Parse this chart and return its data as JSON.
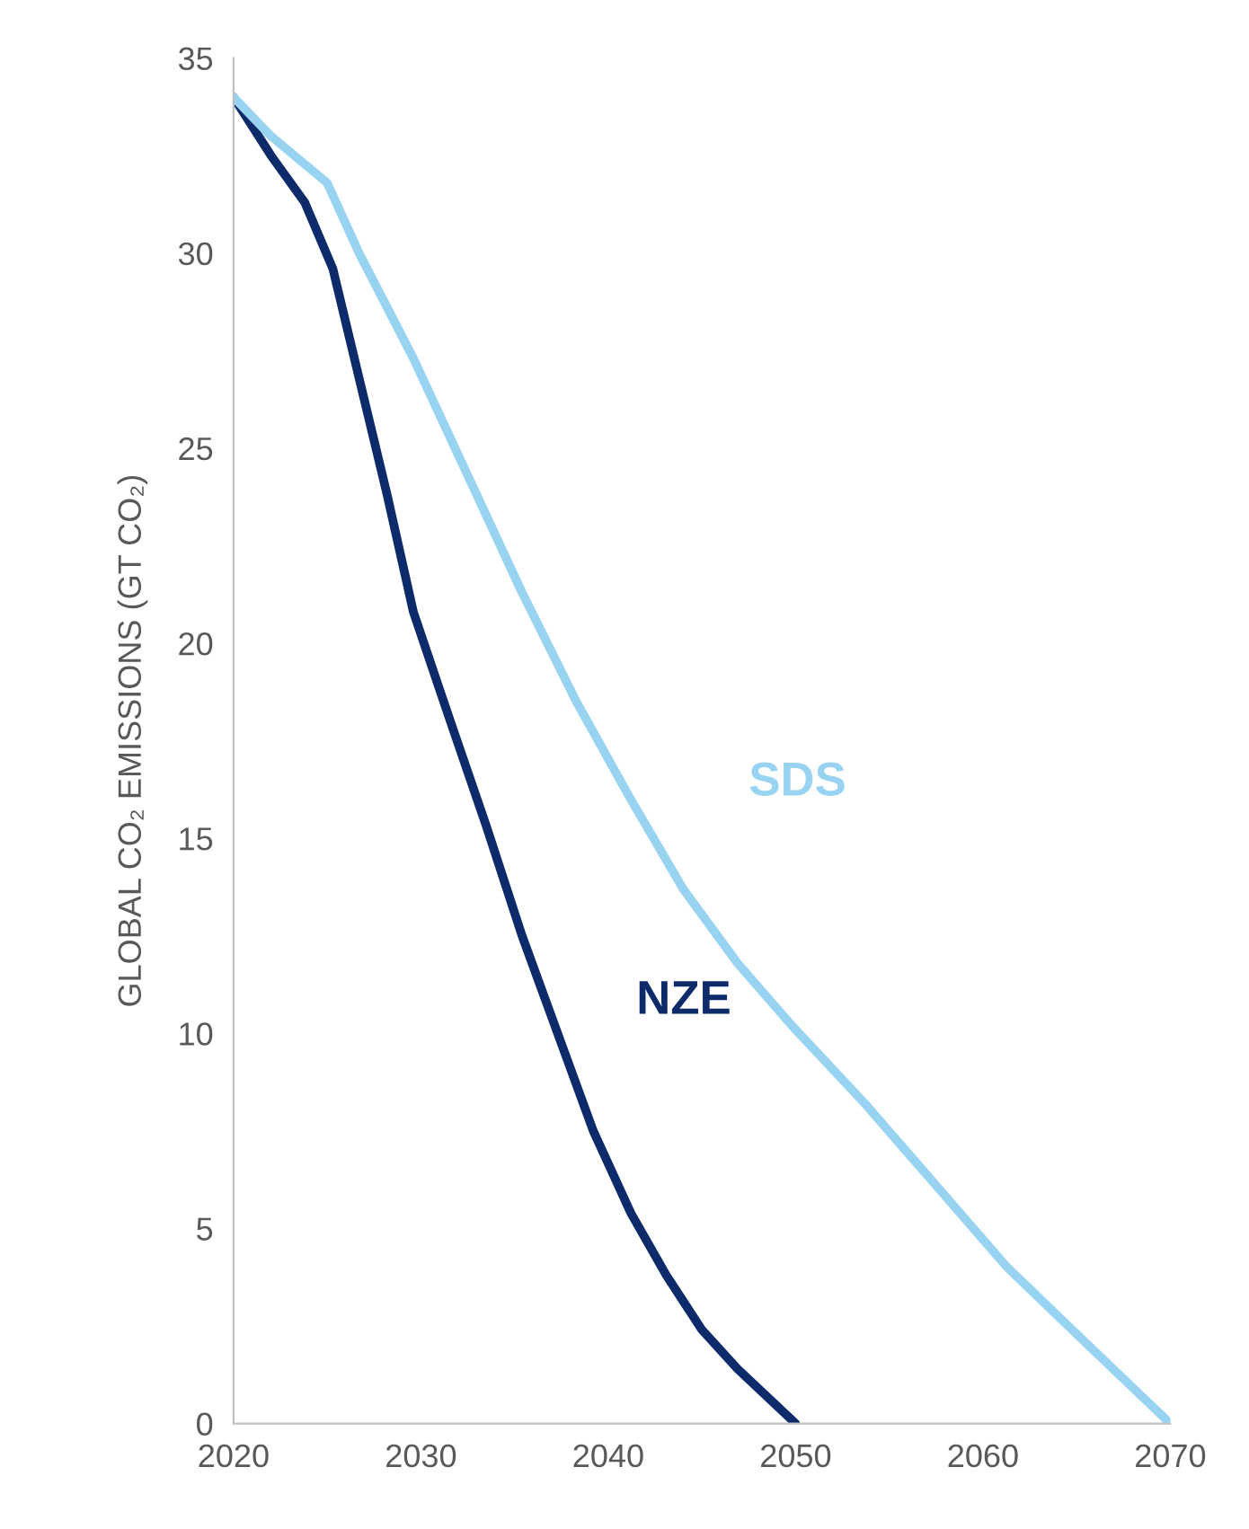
{
  "chart_data": {
    "type": "line",
    "ylabel": "GLOBAL CO₂ EMISSIONS (GT CO₂)",
    "xlim": [
      2020,
      2070
    ],
    "xticks": [
      2020,
      2030,
      2040,
      2050,
      2060,
      2070
    ],
    "ylim": [
      0,
      35
    ],
    "yticks": [
      0,
      5,
      10,
      15,
      20,
      25,
      30,
      35
    ],
    "grid": false,
    "legend": false,
    "marker": "none",
    "line_style": "solid",
    "series": [
      {
        "name": "NZE",
        "color": "#0d2b6b",
        "x": [
          2020,
          2022,
          2023.8,
          2025.3,
          2026.7,
          2028.2,
          2029.6,
          2031.5,
          2033.5,
          2035.4,
          2037.3,
          2039.2,
          2041.2,
          2043.1,
          2045,
          2046.9,
          2050
        ],
        "values": [
          34,
          32.5,
          31.3,
          29.6,
          26.8,
          23.8,
          20.8,
          18.1,
          15.3,
          12.5,
          10,
          7.5,
          5.4,
          3.8,
          2.4,
          1.4,
          0
        ]
      },
      {
        "name": "SDS",
        "color": "#99d3f2",
        "x": [
          2020,
          2022,
          2025,
          2026.7,
          2029.6,
          2032.5,
          2035.4,
          2038.3,
          2041.2,
          2044,
          2046.9,
          2049.8,
          2053.7,
          2057.5,
          2061.3,
          2065.2,
          2070
        ],
        "values": [
          34,
          33,
          31.8,
          30,
          27.3,
          24.3,
          21.3,
          18.5,
          16,
          13.7,
          11.8,
          10.2,
          8.2,
          6.1,
          4,
          2.2,
          0
        ]
      }
    ]
  }
}
